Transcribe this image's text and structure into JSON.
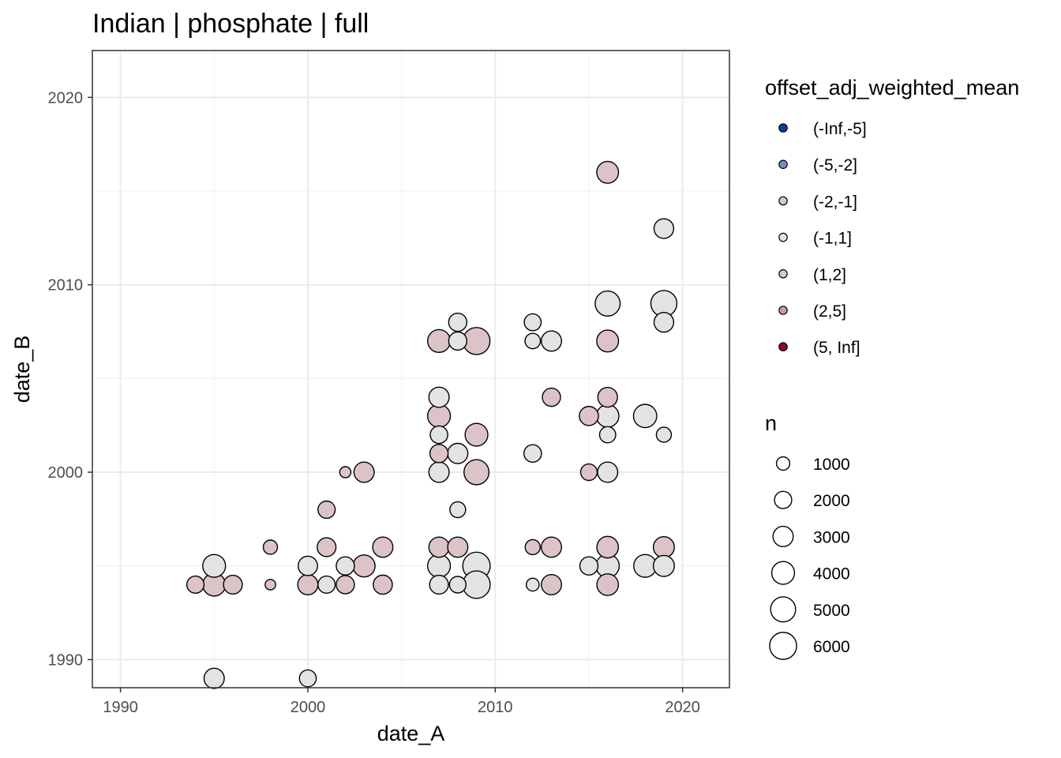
{
  "chart_data": {
    "type": "scatter",
    "title": "Indian | phosphate | full",
    "xlabel": "date_A",
    "ylabel": "date_B",
    "xlim": [
      1988.5,
      2022.5
    ],
    "ylim": [
      1988.5,
      2022.5
    ],
    "x_ticks": [
      1990,
      2000,
      2010,
      2020
    ],
    "y_ticks": [
      1990,
      2000,
      2010,
      2020
    ],
    "grid": true,
    "color_legend": {
      "title": "offset_adj_weighted_mean",
      "position": "right",
      "entries": [
        {
          "label": "(-Inf,-5]",
          "color": "#0b3f9c"
        },
        {
          "label": "(-5,-2]",
          "color": "#7a8fc1"
        },
        {
          "label": "(-2,-1]",
          "color": "#c6cbdc"
        },
        {
          "label": "(-1,1]",
          "color": "#e3e3e3"
        },
        {
          "label": "(1,2]",
          "color": "#dbc3c8"
        },
        {
          "label": "(2,5]",
          "color": "#c79aa4"
        },
        {
          "label": "(5, Inf]",
          "color": "#8b0a32"
        }
      ]
    },
    "size_legend": {
      "title": "n",
      "position": "right",
      "entries": [
        {
          "label": "1000",
          "value": 1000
        },
        {
          "label": "2000",
          "value": 2000
        },
        {
          "label": "3000",
          "value": 3000
        },
        {
          "label": "4000",
          "value": 4000
        },
        {
          "label": "5000",
          "value": 5000
        },
        {
          "label": "6000",
          "value": 6000
        }
      ]
    },
    "points": [
      {
        "x": 1994,
        "y": 1994,
        "n": 2000,
        "bin": "(1,2]"
      },
      {
        "x": 1995,
        "y": 1994,
        "n": 4000,
        "bin": "(1,2]"
      },
      {
        "x": 1995,
        "y": 1995,
        "n": 4000,
        "bin": "(-1,1]"
      },
      {
        "x": 1996,
        "y": 1994,
        "n": 2500,
        "bin": "(1,2]"
      },
      {
        "x": 1995,
        "y": 1989,
        "n": 3000,
        "bin": "(-1,1]"
      },
      {
        "x": 1998,
        "y": 1996,
        "n": 1200,
        "bin": "(1,2]"
      },
      {
        "x": 1998,
        "y": 1994,
        "n": 500,
        "bin": "(1,2]"
      },
      {
        "x": 2000,
        "y": 1995,
        "n": 2700,
        "bin": "(-1,1]"
      },
      {
        "x": 2000,
        "y": 1994,
        "n": 3000,
        "bin": "(1,2]"
      },
      {
        "x": 2000,
        "y": 1989,
        "n": 1900,
        "bin": "(-1,1]"
      },
      {
        "x": 2001,
        "y": 1998,
        "n": 2000,
        "bin": "(1,2]"
      },
      {
        "x": 2001,
        "y": 1996,
        "n": 2500,
        "bin": "(1,2]"
      },
      {
        "x": 2001,
        "y": 1994,
        "n": 2000,
        "bin": "(-1,1]"
      },
      {
        "x": 2002,
        "y": 2000,
        "n": 600,
        "bin": "(1,2]"
      },
      {
        "x": 2002,
        "y": 1995,
        "n": 2300,
        "bin": "(-1,1]"
      },
      {
        "x": 2002,
        "y": 1994,
        "n": 2300,
        "bin": "(1,2]"
      },
      {
        "x": 2003,
        "y": 2000,
        "n": 3000,
        "bin": "(1,2]"
      },
      {
        "x": 2003,
        "y": 1995,
        "n": 3700,
        "bin": "(1,2]"
      },
      {
        "x": 2004,
        "y": 1996,
        "n": 3000,
        "bin": "(1,2]"
      },
      {
        "x": 2004,
        "y": 1994,
        "n": 2600,
        "bin": "(1,2]"
      },
      {
        "x": 2007,
        "y": 2007,
        "n": 4000,
        "bin": "(1,2]"
      },
      {
        "x": 2007,
        "y": 2004,
        "n": 3000,
        "bin": "(-1,1]"
      },
      {
        "x": 2007,
        "y": 2003,
        "n": 4000,
        "bin": "(1,2]"
      },
      {
        "x": 2007,
        "y": 2002,
        "n": 2100,
        "bin": "(-1,1]"
      },
      {
        "x": 2007,
        "y": 2001,
        "n": 2300,
        "bin": "(1,2]"
      },
      {
        "x": 2007,
        "y": 2000,
        "n": 3000,
        "bin": "(-1,1]"
      },
      {
        "x": 2007,
        "y": 1996,
        "n": 3000,
        "bin": "(1,2]"
      },
      {
        "x": 2007,
        "y": 1995,
        "n": 4000,
        "bin": "(-1,1]"
      },
      {
        "x": 2007,
        "y": 1994,
        "n": 2500,
        "bin": "(-1,1]"
      },
      {
        "x": 2008,
        "y": 2008,
        "n": 2300,
        "bin": "(-1,1]"
      },
      {
        "x": 2008,
        "y": 2007,
        "n": 2300,
        "bin": "(-1,1]"
      },
      {
        "x": 2008,
        "y": 2001,
        "n": 3000,
        "bin": "(-1,1]"
      },
      {
        "x": 2008,
        "y": 1998,
        "n": 1600,
        "bin": "(-1,1]"
      },
      {
        "x": 2008,
        "y": 1996,
        "n": 3000,
        "bin": "(1,2]"
      },
      {
        "x": 2008,
        "y": 1994,
        "n": 1800,
        "bin": "(-1,1]"
      },
      {
        "x": 2009,
        "y": 2007,
        "n": 6000,
        "bin": "(1,2]"
      },
      {
        "x": 2009,
        "y": 2002,
        "n": 4000,
        "bin": "(1,2]"
      },
      {
        "x": 2009,
        "y": 2000,
        "n": 5000,
        "bin": "(1,2]"
      },
      {
        "x": 2009,
        "y": 1995,
        "n": 6200,
        "bin": "(-1,1]"
      },
      {
        "x": 2009,
        "y": 1994,
        "n": 6200,
        "bin": "(-1,1]"
      },
      {
        "x": 2012,
        "y": 2008,
        "n": 1900,
        "bin": "(-1,1]"
      },
      {
        "x": 2012,
        "y": 2007,
        "n": 1500,
        "bin": "(-1,1]"
      },
      {
        "x": 2012,
        "y": 2001,
        "n": 2100,
        "bin": "(-1,1]"
      },
      {
        "x": 2012,
        "y": 1996,
        "n": 1400,
        "bin": "(1,2]"
      },
      {
        "x": 2012,
        "y": 1994,
        "n": 900,
        "bin": "(-1,1]"
      },
      {
        "x": 2013,
        "y": 2007,
        "n": 3000,
        "bin": "(-1,1]"
      },
      {
        "x": 2013,
        "y": 2004,
        "n": 2300,
        "bin": "(1,2]"
      },
      {
        "x": 2013,
        "y": 1996,
        "n": 3000,
        "bin": "(1,2]"
      },
      {
        "x": 2013,
        "y": 1994,
        "n": 3000,
        "bin": "(1,2]"
      },
      {
        "x": 2015,
        "y": 2003,
        "n": 2600,
        "bin": "(1,2]"
      },
      {
        "x": 2015,
        "y": 2000,
        "n": 1800,
        "bin": "(1,2]"
      },
      {
        "x": 2015,
        "y": 1995,
        "n": 2300,
        "bin": "(-1,1]"
      },
      {
        "x": 2016,
        "y": 2016,
        "n": 3600,
        "bin": "(1,2]"
      },
      {
        "x": 2016,
        "y": 2009,
        "n": 5000,
        "bin": "(-1,1]"
      },
      {
        "x": 2016,
        "y": 2007,
        "n": 3600,
        "bin": "(1,2]"
      },
      {
        "x": 2016,
        "y": 2004,
        "n": 2800,
        "bin": "(1,2]"
      },
      {
        "x": 2016,
        "y": 2003,
        "n": 3900,
        "bin": "(-1,1]"
      },
      {
        "x": 2016,
        "y": 2002,
        "n": 1700,
        "bin": "(-1,1]"
      },
      {
        "x": 2016,
        "y": 2000,
        "n": 3000,
        "bin": "(-1,1]"
      },
      {
        "x": 2016,
        "y": 1996,
        "n": 3500,
        "bin": "(1,2]"
      },
      {
        "x": 2016,
        "y": 1995,
        "n": 4200,
        "bin": "(-1,1]"
      },
      {
        "x": 2016,
        "y": 1994,
        "n": 3500,
        "bin": "(1,2]"
      },
      {
        "x": 2018,
        "y": 2003,
        "n": 4200,
        "bin": "(-1,1]"
      },
      {
        "x": 2018,
        "y": 1995,
        "n": 4000,
        "bin": "(-1,1]"
      },
      {
        "x": 2019,
        "y": 2013,
        "n": 2800,
        "bin": "(-1,1]"
      },
      {
        "x": 2019,
        "y": 2009,
        "n": 5500,
        "bin": "(-1,1]"
      },
      {
        "x": 2019,
        "y": 2008,
        "n": 2800,
        "bin": "(-1,1]"
      },
      {
        "x": 2019,
        "y": 2002,
        "n": 1400,
        "bin": "(-1,1]"
      },
      {
        "x": 2019,
        "y": 1996,
        "n": 3300,
        "bin": "(1,2]"
      },
      {
        "x": 2019,
        "y": 1995,
        "n": 3300,
        "bin": "(-1,1]"
      }
    ]
  }
}
